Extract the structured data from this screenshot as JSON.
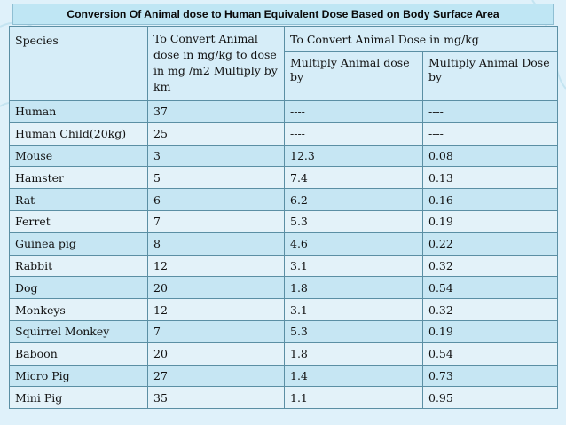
{
  "title": "Conversion  Of Animal dose to Human Equivalent Dose Based on Body Surface Area",
  "headers": {
    "species": "Species",
    "km": "To Convert Animal dose in mg/kg to dose in mg /m2 Multiply by km",
    "dose_group": "To Convert Animal  Dose in mg/kg",
    "multiply": "Multiply Animal dose by",
    "divide": "Multiply Animal Dose by"
  },
  "rows": [
    {
      "species": "Human",
      "km": "37",
      "multiply": "----",
      "divide": "----"
    },
    {
      "species": "Human Child(20kg)",
      "km": "25",
      "multiply": "----",
      "divide": "----"
    },
    {
      "species": "Mouse",
      "km": "3",
      "multiply": "12.3",
      "divide": "0.08"
    },
    {
      "species": "Hamster",
      "km": "5",
      "multiply": "7.4",
      "divide": "0.13"
    },
    {
      "species": "Rat",
      "km": "6",
      "multiply": "6.2",
      "divide": "0.16"
    },
    {
      "species": "Ferret",
      "km": "7",
      "multiply": "5.3",
      "divide": "0.19"
    },
    {
      "species": "Guinea pig",
      "km": "8",
      "multiply": "4.6",
      "divide": "0.22"
    },
    {
      "species": "Rabbit",
      "km": "12",
      "multiply": "3.1",
      "divide": "0.32"
    },
    {
      "species": "Dog",
      "km": "20",
      "multiply": "1.8",
      "divide": "0.54"
    },
    {
      "species": "Monkeys",
      "km": "12",
      "multiply": "3.1",
      "divide": "0.32"
    },
    {
      "species": "Squirrel Monkey",
      "km": "7",
      "multiply": "5.3",
      "divide": "0.19"
    },
    {
      "species": "Baboon",
      "km": "20",
      "multiply": "1.8",
      "divide": "0.54"
    },
    {
      "species": "Micro Pig",
      "km": "27",
      "multiply": "1.4",
      "divide": "0.73"
    },
    {
      "species": "Mini Pig",
      "km": "35",
      "multiply": "1.1",
      "divide": "0.95"
    }
  ]
}
